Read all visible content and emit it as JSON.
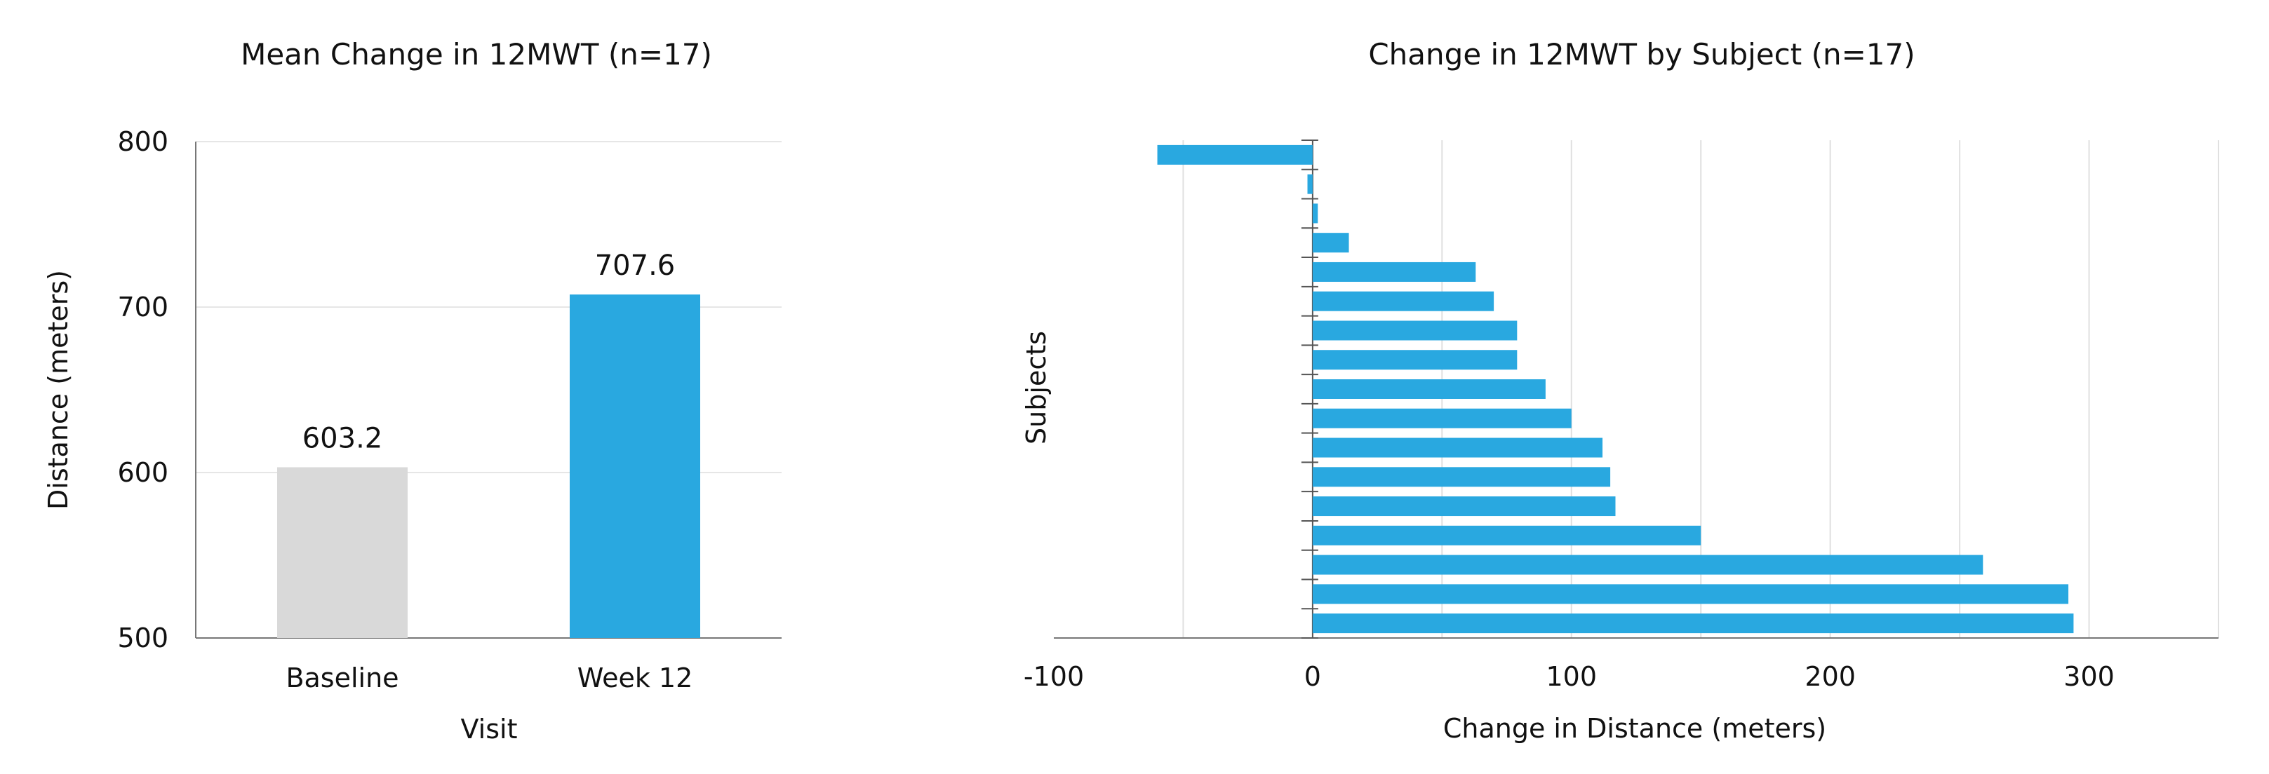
{
  "chart_data": [
    {
      "type": "bar",
      "title": "Mean Change in 12MWT (n=17)",
      "xlabel": "Visit",
      "ylabel": "Distance (meters)",
      "categories": [
        "Baseline",
        "Week 12"
      ],
      "values": [
        603.2,
        707.6
      ],
      "value_labels": [
        "603.2",
        "707.6"
      ],
      "bar_colors": [
        "#d9d9d9",
        "#29a8e0"
      ],
      "ylim": [
        500,
        800
      ],
      "yticks": [
        500,
        600,
        700,
        800
      ],
      "ytick_labels": [
        "500",
        "600",
        "700",
        "800"
      ],
      "grid": true
    },
    {
      "type": "bar",
      "orientation": "horizontal",
      "title": "Change in 12MWT by Subject (n=17)",
      "xlabel": "Change in Distance (meters)",
      "ylabel": "Subjects",
      "values": [
        -60,
        -2,
        2,
        14,
        63,
        70,
        79,
        79,
        90,
        100,
        112,
        115,
        117,
        150,
        259,
        292,
        294
      ],
      "bar_color": "#29a8e0",
      "xlim": [
        -100,
        350
      ],
      "xticks": [
        -100,
        0,
        100,
        200,
        300
      ],
      "xtick_labels": [
        "-100",
        "0",
        "100",
        "200",
        "300"
      ],
      "grid": true
    }
  ]
}
